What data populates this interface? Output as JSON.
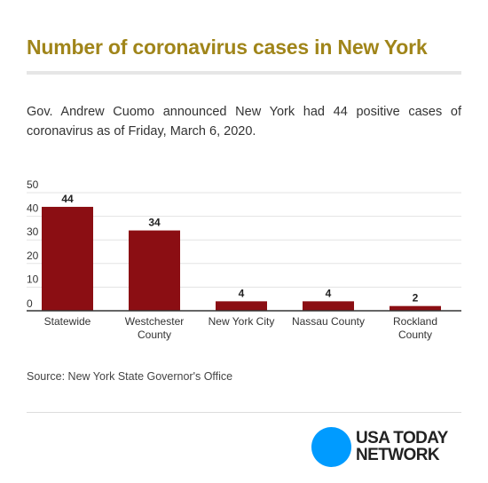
{
  "title": "Number of coronavirus cases in New York",
  "description": "Gov. Andrew Cuomo announced New York had 44 positive cases of coronavirus as of Friday, March 6, 2020.",
  "source": "Source: New York State Governor's Office",
  "logo": {
    "line1": "USA TODAY",
    "line2": "NETWORK",
    "dot_color": "#009bff"
  },
  "colors": {
    "title": "#a0851a",
    "bar": "#8b0e13"
  },
  "chart_data": {
    "type": "bar",
    "categories": [
      [
        "Statewide"
      ],
      [
        "Westchester",
        "County"
      ],
      [
        "New York City"
      ],
      [
        "Nassau County"
      ],
      [
        "Rockland",
        "County"
      ]
    ],
    "values": [
      44,
      34,
      4,
      4,
      2
    ],
    "ylim": [
      0,
      50
    ],
    "yticks": [
      0,
      10,
      20,
      30,
      40,
      50
    ],
    "grid": true,
    "legend": "none"
  }
}
